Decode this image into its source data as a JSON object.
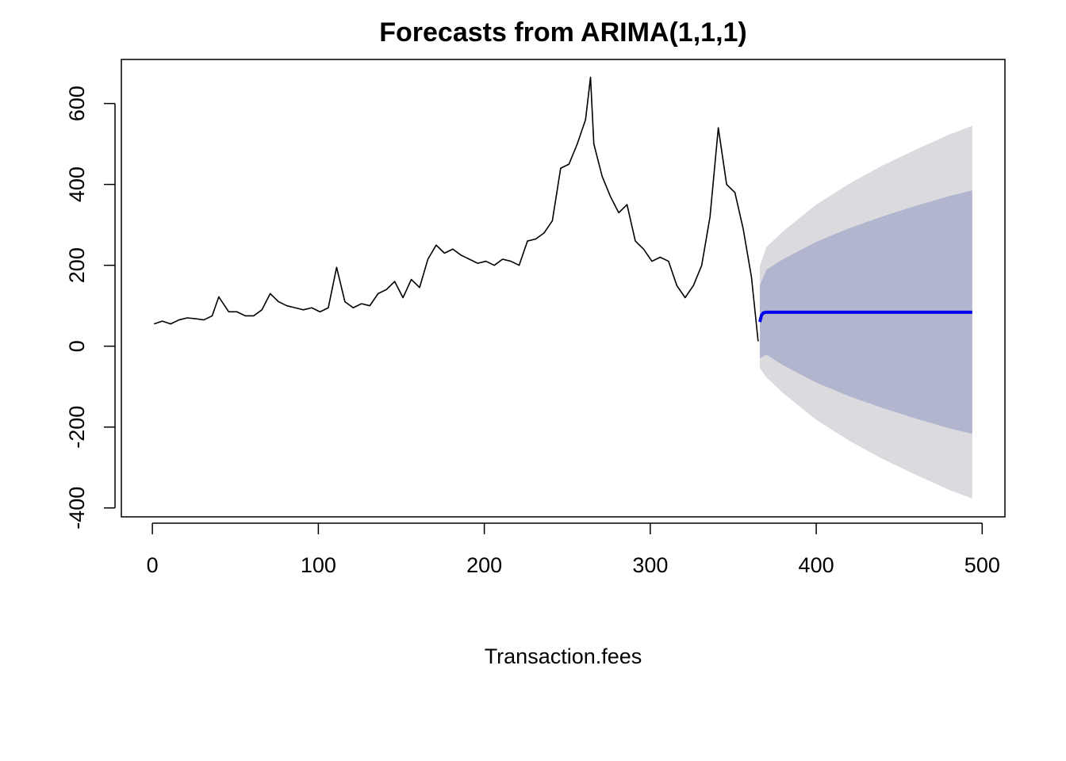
{
  "chart_data": {
    "type": "forecast",
    "title": "Forecasts from ARIMA(1,1,1)",
    "x_label": "Transaction.fees",
    "xlim": [
      -18.7,
      513.7
    ],
    "ylim": [
      -422,
      709
    ],
    "xticks": [
      0,
      100,
      200,
      300,
      400,
      500
    ],
    "yticks": [
      -400,
      -200,
      0,
      200,
      400,
      600
    ],
    "observed": {
      "color": "#000000",
      "x": [
        1,
        6,
        11,
        16,
        21,
        26,
        31,
        36,
        40,
        46,
        51,
        56,
        61,
        66,
        71,
        76,
        81,
        86,
        91,
        96,
        101,
        106,
        111,
        116,
        121,
        126,
        131,
        136,
        141,
        146,
        151,
        156,
        161,
        166,
        171,
        176,
        181,
        186,
        191,
        196,
        201,
        206,
        211,
        216,
        221,
        226,
        231,
        236,
        241,
        246,
        251,
        256,
        261,
        264,
        266,
        271,
        276,
        281,
        286,
        291,
        296,
        301,
        306,
        311,
        316,
        321,
        326,
        331,
        336,
        341,
        346,
        351,
        356,
        361,
        365
      ],
      "values": [
        55,
        62,
        55,
        65,
        70,
        68,
        65,
        75,
        122,
        85,
        85,
        75,
        75,
        90,
        130,
        110,
        100,
        95,
        90,
        95,
        85,
        95,
        195,
        110,
        95,
        105,
        100,
        130,
        140,
        160,
        120,
        165,
        145,
        215,
        250,
        230,
        240,
        225,
        215,
        205,
        210,
        200,
        215,
        210,
        200,
        260,
        265,
        280,
        310,
        440,
        450,
        500,
        560,
        665,
        500,
        420,
        370,
        330,
        350,
        260,
        240,
        210,
        220,
        210,
        150,
        120,
        150,
        200,
        320,
        540,
        400,
        380,
        290,
        170,
        12
      ]
    },
    "bands": [
      {
        "color": "#dbdbdf",
        "x": [
          366,
          370,
          380,
          400,
          420,
          440,
          460,
          480,
          494
        ],
        "lower": [
          -54,
          -77,
          -116,
          -182,
          -234,
          -279,
          -318,
          -355,
          -377
        ],
        "upper": [
          198,
          245,
          284,
          350,
          402,
          447,
          486,
          523,
          545
        ]
      },
      {
        "color": "#b1b5ce",
        "x": [
          366,
          370,
          380,
          400,
          420,
          440,
          460,
          480,
          494
        ],
        "lower": [
          -30,
          -21,
          -47,
          -90,
          -124,
          -153,
          -179,
          -203,
          -217
        ],
        "upper": [
          150,
          189,
          215,
          258,
          292,
          321,
          347,
          371,
          385
        ]
      }
    ],
    "forecast": {
      "color": "#0000ee",
      "x": [
        366,
        367,
        368,
        370,
        494
      ],
      "values": [
        60,
        76,
        82,
        84,
        84
      ]
    }
  }
}
